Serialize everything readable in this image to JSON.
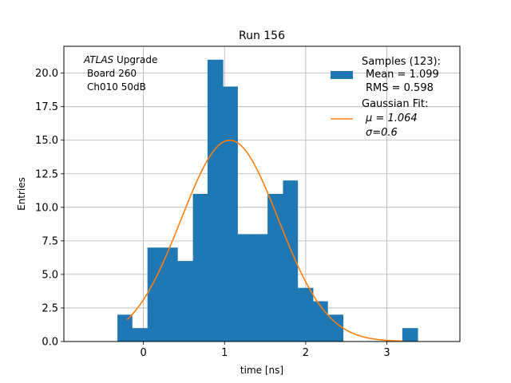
{
  "chart_data": {
    "type": "bar",
    "title": "Run 156",
    "xlabel": "time [ns]",
    "ylabel": "Entries",
    "xlim": [
      -0.98,
      3.9
    ],
    "ylim": [
      0,
      22.0
    ],
    "grid": true,
    "xticks": [
      0,
      1,
      2,
      3
    ],
    "yticks": [
      0.0,
      2.5,
      5.0,
      7.5,
      10.0,
      12.5,
      15.0,
      17.5,
      20.0
    ],
    "annotation": {
      "italic": "ATLAS",
      "lines": [
        "Upgrade",
        "Board 260",
        "Ch010 50dB"
      ]
    },
    "legend": {
      "position": "top-right",
      "samples_lines": [
        "Samples (123):",
        "Mean = 1.099",
        "RMS = 0.598"
      ],
      "fit_lines": [
        "Gaussian Fit:",
        "μ = 1.064",
        "σ=0.6"
      ]
    },
    "histogram": {
      "color": "#1f77b4",
      "bins": [
        {
          "x0": -0.32,
          "x1": -0.14,
          "count": 2
        },
        {
          "x0": -0.14,
          "x1": 0.05,
          "count": 1
        },
        {
          "x0": 0.05,
          "x1": 0.24,
          "count": 7
        },
        {
          "x0": 0.24,
          "x1": 0.42,
          "count": 7
        },
        {
          "x0": 0.42,
          "x1": 0.61,
          "count": 6
        },
        {
          "x0": 0.61,
          "x1": 0.79,
          "count": 11
        },
        {
          "x0": 0.79,
          "x1": 0.98,
          "count": 21
        },
        {
          "x0": 0.98,
          "x1": 1.16,
          "count": 19
        },
        {
          "x0": 1.16,
          "x1": 1.35,
          "count": 8
        },
        {
          "x0": 1.35,
          "x1": 1.53,
          "count": 8
        },
        {
          "x0": 1.53,
          "x1": 1.72,
          "count": 11
        },
        {
          "x0": 1.72,
          "x1": 1.9,
          "count": 12
        },
        {
          "x0": 1.9,
          "x1": 2.09,
          "count": 4
        },
        {
          "x0": 2.09,
          "x1": 2.27,
          "count": 3
        },
        {
          "x0": 2.27,
          "x1": 2.46,
          "count": 2
        },
        {
          "x0": 3.19,
          "x1": 3.38,
          "count": 1
        }
      ]
    },
    "fit": {
      "color": "#ff7f0e",
      "amplitude": 15.0,
      "mu": 1.064,
      "sigma": 0.6,
      "x_range": [
        -0.2,
        3.2
      ]
    }
  }
}
